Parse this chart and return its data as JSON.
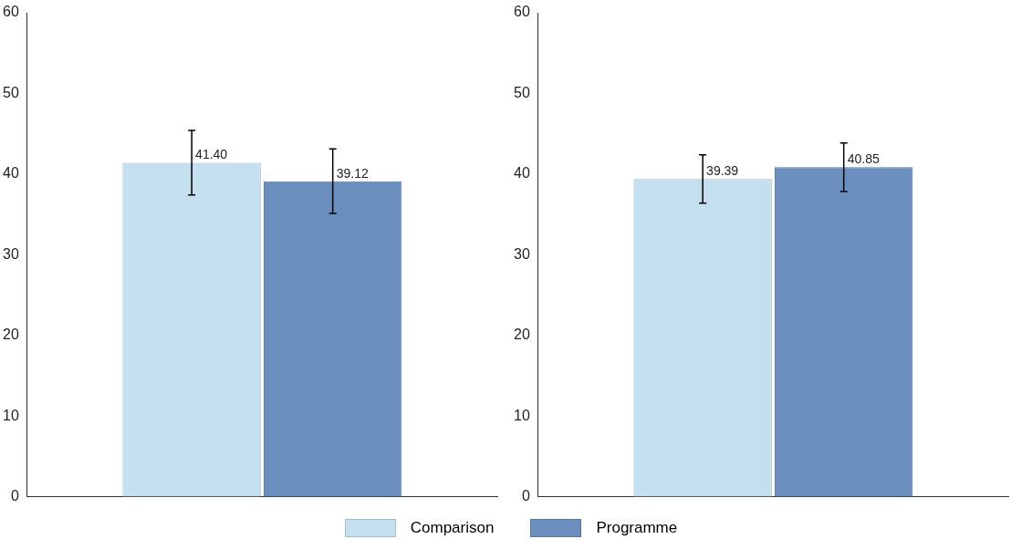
{
  "chart_data": [
    {
      "type": "bar",
      "categories": [
        null
      ],
      "series": [
        {
          "name": "Comparison",
          "color": "#c4dfed",
          "values": [
            41.4
          ],
          "errors": [
            4.0
          ],
          "value_labels": [
            "41.40"
          ]
        },
        {
          "name": "Programme",
          "color": "#6a8fbe",
          "values": [
            39.12
          ],
          "errors": [
            4.0
          ],
          "value_labels": [
            "39.12"
          ]
        }
      ],
      "ylim": [
        0,
        60
      ],
      "yticks": [
        0,
        10,
        20,
        30,
        40,
        50,
        60
      ],
      "grid": false,
      "legend": "bottom"
    },
    {
      "type": "bar",
      "categories": [
        null
      ],
      "series": [
        {
          "name": "Comparison",
          "color": "#c4dfed",
          "values": [
            39.39
          ],
          "errors": [
            3.0
          ],
          "value_labels": [
            "39.39"
          ]
        },
        {
          "name": "Programme",
          "color": "#6a8fbe",
          "values": [
            40.85
          ],
          "errors": [
            3.0
          ],
          "value_labels": [
            "40.85"
          ]
        }
      ],
      "ylim": [
        0,
        60
      ],
      "yticks": [
        0,
        10,
        20,
        30,
        40,
        50,
        60
      ],
      "grid": false
    }
  ]
}
